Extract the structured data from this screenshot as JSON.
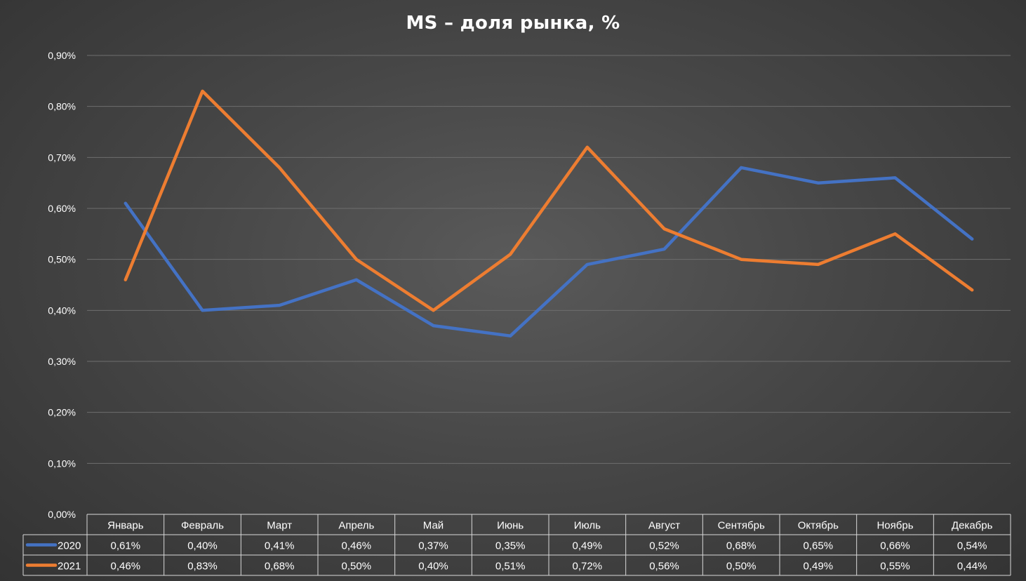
{
  "chart_data": {
    "type": "line",
    "title": "MS – доля рынка, %",
    "categories": [
      "Январь",
      "Февраль",
      "Март",
      "Апрель",
      "Май",
      "Июнь",
      "Июль",
      "Август",
      "Сентябрь",
      "Октябрь",
      "Ноябрь",
      "Декабрь"
    ],
    "series": [
      {
        "name": "2020",
        "color": "#4472C4",
        "values": [
          0.61,
          0.4,
          0.41,
          0.46,
          0.37,
          0.35,
          0.49,
          0.52,
          0.68,
          0.65,
          0.66,
          0.54
        ],
        "labels": [
          "0,61%",
          "0,40%",
          "0,41%",
          "0,46%",
          "0,37%",
          "0,35%",
          "0,49%",
          "0,52%",
          "0,68%",
          "0,65%",
          "0,66%",
          "0,54%"
        ]
      },
      {
        "name": "2021",
        "color": "#ED7D31",
        "values": [
          0.46,
          0.83,
          0.68,
          0.5,
          0.4,
          0.51,
          0.72,
          0.56,
          0.5,
          0.49,
          0.55,
          0.44
        ],
        "labels": [
          "0,46%",
          "0,83%",
          "0,68%",
          "0,50%",
          "0,40%",
          "0,51%",
          "0,72%",
          "0,56%",
          "0,50%",
          "0,49%",
          "0,55%",
          "0,44%"
        ]
      }
    ],
    "ylim": [
      0,
      0.9
    ],
    "yticks": [
      0,
      0.1,
      0.2,
      0.3,
      0.4,
      0.5,
      0.6,
      0.7,
      0.8,
      0.9
    ],
    "ytick_labels": [
      "0,00%",
      "0,10%",
      "0,20%",
      "0,30%",
      "0,40%",
      "0,50%",
      "0,60%",
      "0,70%",
      "0,80%",
      "0,90%"
    ],
    "grid": true,
    "legend": "data-table-bottom"
  }
}
